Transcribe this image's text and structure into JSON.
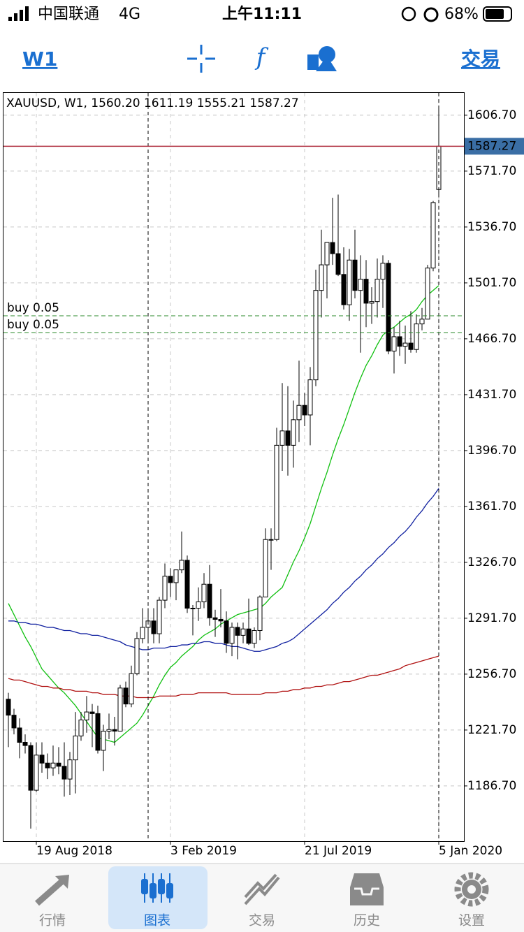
{
  "status_bar": {
    "carrier": "中国联通",
    "network": "4G",
    "time": "上午11:11",
    "battery": "68%"
  },
  "toolbar": {
    "timeframe": "W1",
    "trade": "交易"
  },
  "chart_data": {
    "type": "candlestick",
    "title": "XAUUSD, W1, 1560.20 1611.19 1555.21 1587.27",
    "categories": [
      null,
      null,
      null,
      null,
      null,
      "19 Aug 2018",
      null,
      null,
      null,
      null,
      null,
      null,
      null,
      null,
      null,
      null,
      null,
      null,
      null,
      null,
      null,
      null,
      null,
      null,
      null,
      null,
      null,
      null,
      null,
      "3 Feb 2019",
      null,
      null,
      null,
      null,
      null,
      null,
      null,
      null,
      null,
      null,
      null,
      null,
      null,
      null,
      null,
      null,
      null,
      null,
      null,
      null,
      null,
      null,
      null,
      "21 Jul 2019",
      null,
      null,
      null,
      null,
      null,
      null,
      null,
      null,
      null,
      null,
      null,
      null,
      null,
      null,
      null,
      null,
      null,
      null,
      null,
      null,
      null,
      null,
      null,
      "5 Jan 2020"
    ],
    "open": [
      1241,
      1231,
      1223,
      1214,
      1212,
      1184,
      1206,
      1201,
      1198,
      1201,
      1199,
      1191,
      1203,
      1218,
      1228,
      1233,
      1232,
      1209,
      1221,
      1222,
      1221,
      1248,
      1238,
      1257,
      1279,
      1286,
      1290,
      1282,
      1303,
      1318,
      1314,
      1322,
      1328,
      1298,
      1298,
      1302,
      1313,
      1292,
      1291,
      1290,
      1276,
      1286,
      1281,
      1285,
      1276,
      1284,
      1305,
      1341,
      1341,
      1400,
      1409,
      1400,
      1416,
      1425,
      1419,
      1441,
      1497,
      1513,
      1527,
      1520,
      1507,
      1488,
      1516,
      1497,
      1504,
      1489,
      1490,
      1504,
      1514,
      1459,
      1468,
      1462,
      1464,
      1460,
      1476,
      1479,
      1511,
      1560.2
    ],
    "high": [
      1245,
      1235,
      1229,
      1219,
      1214,
      1214,
      1214,
      1207,
      1212,
      1211,
      1214,
      1208,
      1233,
      1233,
      1243,
      1238,
      1237,
      1225,
      1232,
      1230,
      1250,
      1252,
      1262,
      1283,
      1298,
      1298,
      1298,
      1305,
      1326,
      1323,
      1322,
      1346,
      1331,
      1300,
      1311,
      1320,
      1325,
      1297,
      1310,
      1296,
      1289,
      1289,
      1289,
      1304,
      1286,
      1306,
      1348,
      1348,
      1411,
      1439,
      1437,
      1428,
      1453,
      1433,
      1449,
      1510,
      1535,
      1527,
      1555,
      1557,
      1524,
      1523,
      1535,
      1519,
      1516,
      1499,
      1517,
      1519,
      1516,
      1474,
      1478,
      1475,
      1484,
      1482,
      1486,
      1513,
      1553,
      1611.19
    ],
    "low": [
      1211,
      1219,
      1204,
      1207,
      1160,
      1183,
      1195,
      1191,
      1193,
      1194,
      1180,
      1181,
      1182,
      1215,
      1220,
      1211,
      1207,
      1196,
      1216,
      1212,
      1221,
      1236,
      1236,
      1256,
      1276,
      1278,
      1276,
      1276,
      1298,
      1305,
      1303,
      1320,
      1295,
      1281,
      1290,
      1298,
      1287,
      1280,
      1286,
      1270,
      1268,
      1266,
      1276,
      1275,
      1273,
      1278,
      1305,
      1322,
      1340,
      1384,
      1381,
      1386,
      1402,
      1412,
      1400,
      1437,
      1480,
      1492,
      1513,
      1506,
      1485,
      1478,
      1492,
      1458,
      1474,
      1476,
      1480,
      1486,
      1457,
      1445,
      1456,
      1451,
      1458,
      1458,
      1472,
      1479,
      1509,
      1555.21
    ],
    "close": [
      1231,
      1223,
      1214,
      1212,
      1184,
      1206,
      1201,
      1198,
      1201,
      1199,
      1191,
      1203,
      1218,
      1228,
      1233,
      1232,
      1209,
      1221,
      1222,
      1221,
      1248,
      1238,
      1257,
      1279,
      1286,
      1290,
      1282,
      1303,
      1318,
      1314,
      1322,
      1328,
      1298,
      1298,
      1302,
      1313,
      1292,
      1291,
      1290,
      1276,
      1286,
      1281,
      1285,
      1276,
      1284,
      1305,
      1341,
      1341,
      1400,
      1409,
      1400,
      1416,
      1425,
      1419,
      1441,
      1497,
      1513,
      1527,
      1520,
      1507,
      1488,
      1516,
      1497,
      1504,
      1489,
      1490,
      1504,
      1514,
      1459,
      1468,
      1462,
      1464,
      1460,
      1476,
      1479,
      1511,
      1552,
      1587.27
    ],
    "indicators": [
      {
        "color": "#10c010",
        "values": [
          1301,
          1294,
          1287,
          1280,
          1274,
          1267,
          1260,
          1256,
          1252,
          1248,
          1245,
          1241,
          1237,
          1232,
          1227,
          1222,
          1217,
          1216,
          1215,
          1214,
          1217,
          1220,
          1223,
          1226,
          1231,
          1237,
          1243,
          1250,
          1256,
          1261,
          1264,
          1268,
          1271,
          1274,
          1278,
          1281,
          1283,
          1285,
          1288,
          1290,
          1292,
          1294,
          1295,
          1296,
          1297,
          1298,
          1301,
          1305,
          1308,
          1311,
          1319,
          1327,
          1334,
          1342,
          1351,
          1362,
          1373,
          1383,
          1394,
          1404,
          1413,
          1423,
          1433,
          1442,
          1450,
          1456,
          1463,
          1469,
          1472,
          1474,
          1477,
          1480,
          1482,
          1485,
          1490,
          1494,
          1497,
          1500
        ]
      },
      {
        "color": "#1020a0",
        "values": [
          1290,
          1290,
          1289,
          1289,
          1288,
          1288,
          1287,
          1286,
          1286,
          1285,
          1284,
          1284,
          1283,
          1282,
          1282,
          1281,
          1281,
          1280,
          1279,
          1278,
          1277,
          1275,
          1274,
          1273,
          1272,
          1272,
          1273,
          1273,
          1273,
          1274,
          1274,
          1275,
          1275,
          1276,
          1276,
          1277,
          1277,
          1276,
          1276,
          1275,
          1274,
          1274,
          1273,
          1272,
          1271,
          1271,
          1272,
          1273,
          1274,
          1276,
          1277,
          1279,
          1282,
          1285,
          1288,
          1291,
          1294,
          1297,
          1301,
          1304,
          1308,
          1311,
          1315,
          1318,
          1322,
          1325,
          1329,
          1332,
          1336,
          1339,
          1343,
          1346,
          1350,
          1355,
          1359,
          1364,
          1368,
          1373
        ]
      },
      {
        "color": "#b01010",
        "values": [
          1254,
          1253,
          1253,
          1252,
          1251,
          1250,
          1249,
          1249,
          1248,
          1248,
          1247,
          1247,
          1246,
          1246,
          1246,
          1245,
          1245,
          1244,
          1244,
          1244,
          1243,
          1243,
          1243,
          1242,
          1242,
          1242,
          1242,
          1243,
          1243,
          1243,
          1243,
          1244,
          1244,
          1244,
          1245,
          1245,
          1245,
          1245,
          1245,
          1245,
          1244,
          1244,
          1244,
          1244,
          1244,
          1244,
          1245,
          1245,
          1245,
          1246,
          1246,
          1247,
          1247,
          1248,
          1248,
          1249,
          1249,
          1250,
          1250,
          1251,
          1252,
          1252,
          1253,
          1254,
          1255,
          1256,
          1256,
          1257,
          1258,
          1259,
          1260,
          1262,
          1263,
          1264,
          1265,
          1266,
          1267,
          1268
        ]
      }
    ],
    "orders": [
      {
        "label": "buy 0.05",
        "price": 1481.1
      },
      {
        "label": "buy 0.05",
        "price": 1470.6
      }
    ],
    "price_line": 1587.27,
    "ylim": [
      1152.1,
      1621.1
    ],
    "yticks": [
      {
        "value": 1606.7,
        "label": "1606.70"
      },
      {
        "value": 1571.7,
        "label": "1571.70"
      },
      {
        "value": 1536.7,
        "label": "1536.70"
      },
      {
        "value": 1501.7,
        "label": "1501.70"
      },
      {
        "value": 1466.7,
        "label": "1466.70"
      },
      {
        "value": 1431.7,
        "label": "1431.70"
      },
      {
        "value": 1396.7,
        "label": "1396.70"
      },
      {
        "value": 1361.7,
        "label": "1361.70"
      },
      {
        "value": 1326.7,
        "label": "1326.70"
      },
      {
        "value": 1291.7,
        "label": "1291.70"
      },
      {
        "value": 1256.7,
        "label": "1256.70"
      },
      {
        "value": 1221.7,
        "label": "1221.70"
      },
      {
        "value": 1186.7,
        "label": "1186.70"
      }
    ],
    "grid": true
  },
  "tab_bar": {
    "tabs": [
      {
        "label": "行情"
      },
      {
        "label": "图表"
      },
      {
        "label": "交易"
      },
      {
        "label": "历史"
      },
      {
        "label": "设置"
      }
    ],
    "active": 1
  }
}
